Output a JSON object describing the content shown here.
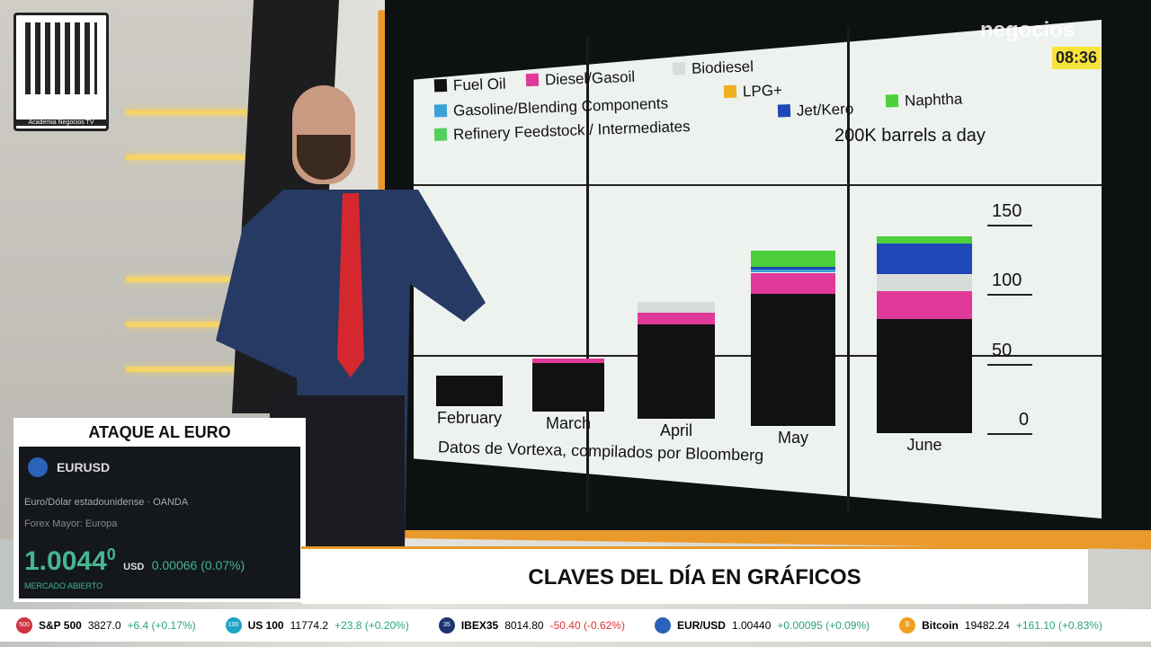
{
  "overlay": {
    "brand": "negocios",
    "clock": "08:36",
    "logo_caption": "Academia Negocios TV"
  },
  "chart_data": {
    "type": "bar",
    "stacked": true,
    "title": "200K barrels a day",
    "legend": [
      {
        "name": "Fuel Oil",
        "color": "#111111"
      },
      {
        "name": "Diesel/Gasoil",
        "color": "#e0399a"
      },
      {
        "name": "Biodiesel",
        "color": "#d8dcd8"
      },
      {
        "name": "Gasoline/Blending Components",
        "color": "#3aa0d8"
      },
      {
        "name": "LPG+",
        "color": "#f0b020"
      },
      {
        "name": "Naphtha",
        "color": "#4ccf3a"
      },
      {
        "name": "Refinery Feedstock / Intermediates",
        "color": "#52d060"
      },
      {
        "name": "Jet/Kero",
        "color": "#1f47b8"
      }
    ],
    "categories": [
      "February",
      "March",
      "April",
      "May",
      "June"
    ],
    "series": [
      {
        "name": "Fuel Oil",
        "values": [
          22,
          35,
          68,
          95,
          82
        ]
      },
      {
        "name": "Diesel/Gasoil",
        "values": [
          0,
          3,
          8,
          15,
          20
        ]
      },
      {
        "name": "Biodiesel",
        "values": [
          0,
          0,
          8,
          0,
          12
        ]
      },
      {
        "name": "Gasoline/Blending Components",
        "values": [
          0,
          0,
          0,
          2,
          0
        ]
      },
      {
        "name": "Jet/Kero",
        "values": [
          0,
          0,
          0,
          2,
          22
        ]
      },
      {
        "name": "Naphtha",
        "values": [
          0,
          0,
          0,
          12,
          5
        ]
      }
    ],
    "yticks": [
      "0",
      "50",
      "100",
      "150"
    ],
    "ylim": [
      0,
      150
    ],
    "source": "Datos de Vortexa, compilados por Bloomberg"
  },
  "infobox": {
    "title": "ATAQUE AL EURO",
    "symbol": "EURUSD",
    "description": "Euro/Dólar estadounidense · OANDA",
    "category": "Forex Mayor: Europa",
    "price": "1.0044",
    "price_sup": "0",
    "currency": "USD",
    "change": "0.00066 (0.07%)",
    "status": "MERCADO ABIERTO"
  },
  "banner": {
    "title": "CLAVES DEL DÍA EN GRÁFICOS"
  },
  "ticker": [
    {
      "name": "S&P 500",
      "value": "3827.0",
      "change": "+6.4 (+0.17%)",
      "dir": "up",
      "color": "#d0323f",
      "badge": "500"
    },
    {
      "name": "US 100",
      "value": "11774.2",
      "change": "+23.8 (+0.20%)",
      "dir": "up",
      "color": "#1fa3c4",
      "badge": "100"
    },
    {
      "name": "IBEX35",
      "value": "8014.80",
      "change": "-50.40 (-0.62%)",
      "dir": "dn",
      "color": "#1d3570",
      "badge": "35"
    },
    {
      "name": "EUR/USD",
      "value": "1.00440",
      "change": "+0.00095 (+0.09%)",
      "dir": "up",
      "color": "#2a63b8",
      "badge": ""
    },
    {
      "name": "Bitcoin",
      "value": "19482.24",
      "change": "+161.10 (+0.83%)",
      "dir": "up",
      "color": "#f0a020",
      "badge": "₿"
    }
  ]
}
